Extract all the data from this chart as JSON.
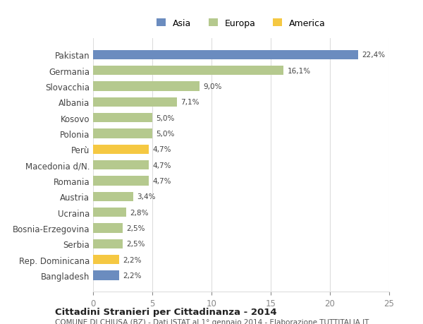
{
  "countries": [
    "Pakistan",
    "Germania",
    "Slovacchia",
    "Albania",
    "Kosovo",
    "Polonia",
    "Perù",
    "Macedonia d/N.",
    "Romania",
    "Austria",
    "Ucraina",
    "Bosnia-Erzegovina",
    "Serbia",
    "Rep. Dominicana",
    "Bangladesh"
  ],
  "values": [
    22.4,
    16.1,
    9.0,
    7.1,
    5.0,
    5.0,
    4.7,
    4.7,
    4.7,
    3.4,
    2.8,
    2.5,
    2.5,
    2.2,
    2.2
  ],
  "labels": [
    "22,4%",
    "16,1%",
    "9,0%",
    "7,1%",
    "5,0%",
    "5,0%",
    "4,7%",
    "4,7%",
    "4,7%",
    "3,4%",
    "2,8%",
    "2,5%",
    "2,5%",
    "2,2%",
    "2,2%"
  ],
  "continents": [
    "Asia",
    "Europa",
    "Europa",
    "Europa",
    "Europa",
    "Europa",
    "America",
    "Europa",
    "Europa",
    "Europa",
    "Europa",
    "Europa",
    "Europa",
    "America",
    "Asia"
  ],
  "colors": {
    "Asia": "#6b8cbf",
    "Europa": "#b5c98e",
    "America": "#f5c842"
  },
  "legend": [
    "Asia",
    "Europa",
    "America"
  ],
  "legend_colors": [
    "#6b8cbf",
    "#b5c98e",
    "#f5c842"
  ],
  "title": "Cittadini Stranieri per Cittadinanza - 2014",
  "subtitle": "COMUNE DI CHIUSA (BZ) - Dati ISTAT al 1° gennaio 2014 - Elaborazione TUTTITALIA.IT",
  "xlim": [
    0,
    25
  ],
  "xticks": [
    0,
    5,
    10,
    15,
    20,
    25
  ],
  "background_color": "#ffffff",
  "grid_color": "#dddddd"
}
